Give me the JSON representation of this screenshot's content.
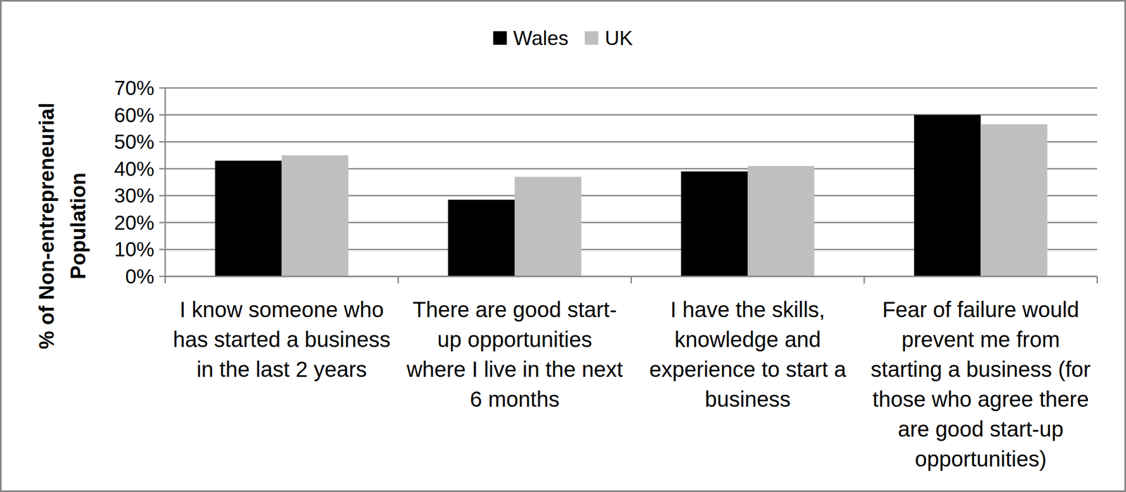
{
  "chart_data": {
    "type": "bar",
    "y_label": "% of Non-entrepreneurial\nPopulation",
    "categories": [
      "I know someone who\nhas started a business\nin the last 2 years",
      "There are good start-\nup opportunities\nwhere I live in the next\n6 months",
      "I have the skills,\nknowledge and\nexperience to start a\nbusiness",
      "Fear of failure would\nprevent me from\nstarting a business (for\nthose who agree there\nare good start-up\nopportunities)"
    ],
    "series": [
      {
        "name": "Wales",
        "color": "#000000",
        "values": [
          43,
          28.5,
          39,
          60
        ]
      },
      {
        "name": "UK",
        "color": "#bfbfbf",
        "values": [
          45,
          37,
          41,
          56.5
        ]
      }
    ],
    "ylim": [
      0,
      70
    ],
    "yticks": [
      {
        "value": 0,
        "label": "0%"
      },
      {
        "value": 10,
        "label": "10%"
      },
      {
        "value": 20,
        "label": "20%"
      },
      {
        "value": 30,
        "label": "30%"
      },
      {
        "value": 40,
        "label": "40%"
      },
      {
        "value": 50,
        "label": "50%"
      },
      {
        "value": 60,
        "label": "60%"
      },
      {
        "value": 70,
        "label": "70%"
      }
    ],
    "grid": true,
    "legend": "top"
  }
}
